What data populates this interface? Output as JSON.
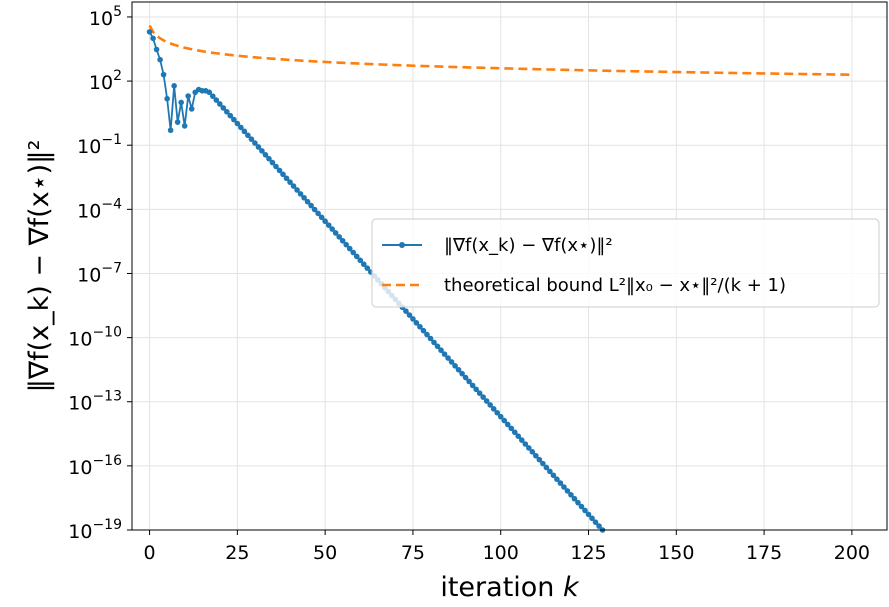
{
  "chart_data": {
    "type": "line",
    "xlabel": "iteration k",
    "ylabel": "‖∇f(x_k) − ∇f(x⋆)‖²",
    "x_ticks": [
      0,
      25,
      50,
      75,
      100,
      125,
      150,
      175,
      200
    ],
    "y_ticks_exponent": [
      5,
      2,
      -1,
      -4,
      -7,
      -10,
      -13,
      -16,
      -19
    ],
    "y_tick_base": "10",
    "xlim": [
      -5,
      210
    ],
    "ylim": [
      1e-19,
      500000.0
    ],
    "yscale": "log",
    "grid": true,
    "legend_position": "center-right",
    "series": [
      {
        "name": "‖∇f(x_k) − ∇f(x⋆)‖²",
        "color": "#1f77b4",
        "style": "solid-with-markers",
        "points": [
          [
            0,
            20000
          ],
          [
            1,
            10000
          ],
          [
            2,
            3000
          ],
          [
            3,
            1000
          ],
          [
            4,
            200
          ],
          [
            5,
            15
          ],
          [
            6,
            0.5
          ],
          [
            7,
            60
          ],
          [
            8,
            1.2
          ],
          [
            9,
            10
          ],
          [
            10,
            0.8
          ],
          [
            11,
            20
          ],
          [
            12,
            5
          ],
          [
            13,
            30
          ],
          [
            14,
            40
          ],
          [
            15,
            35
          ],
          [
            16,
            35
          ],
          [
            17,
            30
          ]
        ],
        "linear_tail": {
          "x_start": 17,
          "y_start": 30,
          "x_end": 129,
          "y_end": 1e-19,
          "step": 1
        }
      },
      {
        "name": "theoretical bound L²‖x₀ − x⋆‖²/(k + 1)",
        "color": "#ff7f0e",
        "style": "dashed",
        "formula_constant": 40000,
        "x_range": [
          0,
          200
        ]
      }
    ]
  },
  "legend": {
    "entries": [
      {
        "label": "‖∇f(x_k) − ∇f(x⋆)‖²"
      },
      {
        "label": "theoretical bound L²‖x₀ − x⋆‖²/(k + 1)"
      }
    ]
  }
}
